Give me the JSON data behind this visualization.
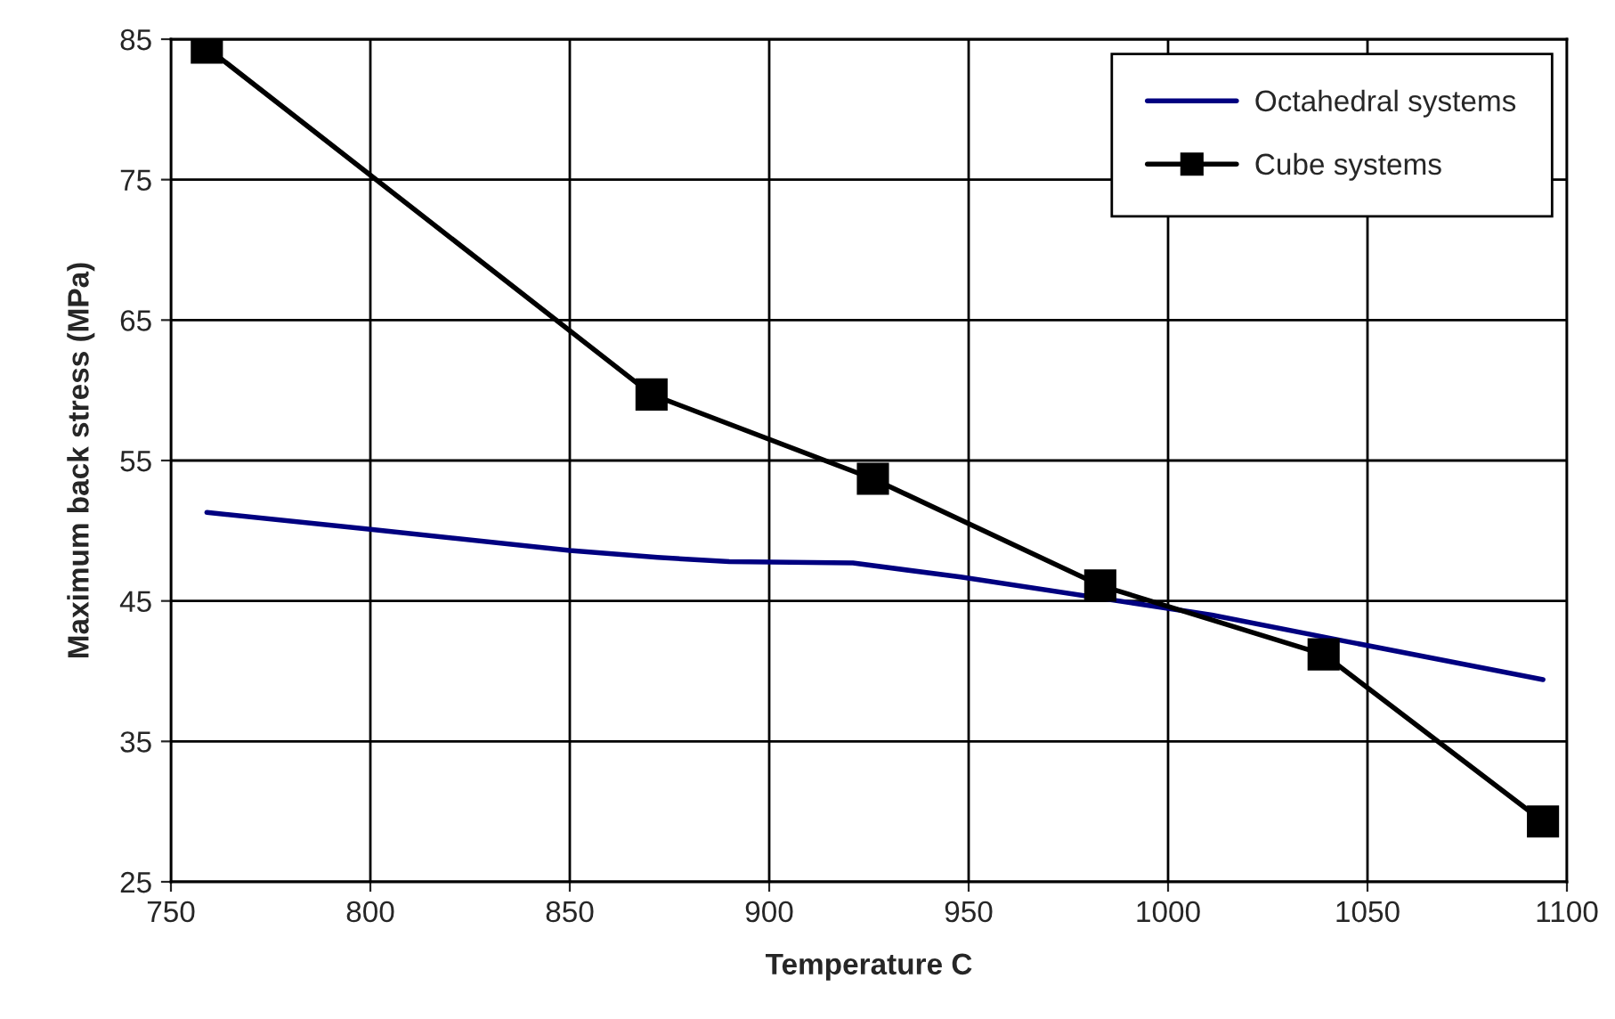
{
  "chart_data": {
    "type": "line",
    "xlabel": "Temperature C",
    "ylabel": "Maximum back stress (MPa)",
    "xlim": [
      750,
      1100
    ],
    "xticks": [
      750,
      800,
      850,
      900,
      950,
      1000,
      1050,
      1100
    ],
    "ylim": [
      25,
      85
    ],
    "yticks": [
      25,
      35,
      45,
      55,
      65,
      75,
      85
    ],
    "grid": true,
    "legend": "top right",
    "series": [
      {
        "name": "Octahedral systems",
        "color": "#000080",
        "marker": "none",
        "x": [
          759,
          800,
          850,
          872,
          890,
          921,
          948,
          1011,
          1045,
          1094
        ],
        "values": [
          51.3,
          50.1,
          48.6,
          48.1,
          47.8,
          47.7,
          46.7,
          44.0,
          42.1,
          39.4
        ]
      },
      {
        "name": "Cube systems",
        "color": "#000000",
        "marker": "square",
        "x": [
          759,
          870.5,
          926,
          983,
          1039,
          1094
        ],
        "values": [
          84.4,
          59.7,
          53.7,
          46.1,
          41.2,
          29.3
        ]
      }
    ]
  }
}
